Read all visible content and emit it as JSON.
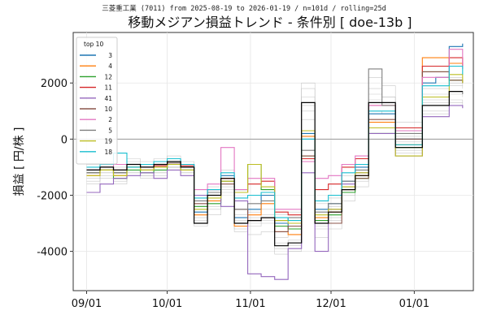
{
  "chart_data": {
    "type": "line",
    "subtitle": "三菱重工業 (7011) from 2025-08-19 to 2026-01-19 / n=101d / rolling=25d",
    "title": "移動メジアン損益トレンド - 条件別 [ doe-13b ]",
    "xlabel": "",
    "ylabel": "損益 [ 円/株 ]",
    "ylim": [
      -5400,
      3800
    ],
    "yticks": [
      -4000,
      -2000,
      0,
      2000
    ],
    "x_range": [
      "2025-08-27",
      "2026-01-23"
    ],
    "xticks": [
      {
        "date": "2025-09-01",
        "label": "09/01"
      },
      {
        "date": "2025-10-01",
        "label": "10/01"
      },
      {
        "date": "2025-11-01",
        "label": "11/01"
      },
      {
        "date": "2025-12-01",
        "label": "12/01"
      },
      {
        "date": "2026-01-01",
        "label": "01/01"
      }
    ],
    "grid": true,
    "legend_title": "top 10",
    "legend_position": "top-left",
    "zero_line": true,
    "dates": [
      "2025-09-01",
      "2025-09-06",
      "2025-09-11",
      "2025-09-16",
      "2025-09-21",
      "2025-09-26",
      "2025-10-01",
      "2025-10-06",
      "2025-10-11",
      "2025-10-16",
      "2025-10-21",
      "2025-10-26",
      "2025-10-31",
      "2025-11-05",
      "2025-11-10",
      "2025-11-15",
      "2025-11-20",
      "2025-11-25",
      "2025-11-30",
      "2025-12-05",
      "2025-12-10",
      "2025-12-15",
      "2025-12-20",
      "2025-12-25",
      "2025-12-30",
      "2026-01-04",
      "2026-01-09",
      "2026-01-14",
      "2026-01-19"
    ],
    "series": [
      {
        "name": "3",
        "color": "#1f77b4",
        "values": [
          -1100,
          -1000,
          -1200,
          -900,
          -1000,
          -900,
          -800,
          -900,
          -2600,
          -2000,
          -1300,
          -2800,
          -2500,
          -2000,
          -3000,
          -3200,
          200,
          -2500,
          -2300,
          -1500,
          -1000,
          900,
          900,
          0,
          0,
          2000,
          2200,
          3300,
          3400
        ]
      },
      {
        "name": "4",
        "color": "#ff7f0e",
        "values": [
          -1300,
          -1100,
          -1300,
          -1000,
          -1100,
          -1000,
          -800,
          -1000,
          -2700,
          -2200,
          -1400,
          -3100,
          -2700,
          -2300,
          -3300,
          -3400,
          100,
          -2800,
          -2600,
          -1800,
          -1300,
          600,
          600,
          -200,
          -200,
          2900,
          2900,
          2700,
          2600
        ]
      },
      {
        "name": "12",
        "color": "#2ca02c",
        "values": [
          -1200,
          -1100,
          -1400,
          -1100,
          -1200,
          -1100,
          -900,
          -1100,
          -2400,
          -2300,
          -1500,
          -1800,
          -900,
          -1800,
          -3100,
          -3200,
          -600,
          -2900,
          -2700,
          -1900,
          -1400,
          200,
          200,
          -300,
          -300,
          2400,
          2400,
          2100,
          2100
        ]
      },
      {
        "name": "11",
        "color": "#d62728",
        "values": [
          -1100,
          -1000,
          -1100,
          -900,
          -1000,
          -950,
          -850,
          -950,
          -2000,
          -1800,
          -1400,
          -1900,
          -1600,
          -1500,
          -2600,
          -2700,
          -700,
          -1800,
          -1600,
          -1000,
          -700,
          1200,
          1200,
          400,
          400,
          2600,
          2600,
          2900,
          2600
        ]
      },
      {
        "name": "41",
        "color": "#9467bd",
        "values": [
          -1900,
          -1600,
          -1400,
          -1300,
          -1200,
          -1400,
          -1100,
          -1300,
          -2000,
          -1800,
          -2400,
          -2200,
          -4800,
          -4900,
          -5000,
          -3900,
          -1200,
          -4000,
          -2500,
          -1600,
          -1200,
          200,
          200,
          -600,
          -600,
          800,
          800,
          1200,
          1100
        ]
      },
      {
        "name": "10",
        "color": "#8c564b",
        "values": [
          -1200,
          -1100,
          -1200,
          -1000,
          -1100,
          -1000,
          -900,
          -1100,
          -2300,
          -2000,
          -1600,
          -2500,
          -2900,
          -2800,
          -3300,
          -3100,
          -600,
          -3000,
          -3000,
          -1700,
          -1400,
          700,
          700,
          0,
          0,
          2400,
          2400,
          2100,
          2000
        ]
      },
      {
        "name": "2",
        "color": "#e377c2",
        "values": [
          -1100,
          -1000,
          -900,
          -900,
          -1000,
          -900,
          -900,
          -1000,
          -1800,
          -1600,
          -300,
          -1800,
          -1400,
          -1400,
          -2500,
          -2500,
          -800,
          -1400,
          -1300,
          -900,
          -600,
          1200,
          1200,
          300,
          300,
          2200,
          2200,
          3200,
          2500
        ]
      },
      {
        "name": "5",
        "color": "#7f7f7f",
        "values": [
          -1200,
          -1000,
          -1200,
          -1000,
          -1000,
          -900,
          -850,
          -1000,
          -2200,
          -1900,
          -1500,
          -2500,
          -2300,
          -2200,
          -2900,
          -2800,
          -400,
          -2600,
          -2300,
          -1500,
          -1100,
          2500,
          1200,
          200,
          200,
          1500,
          1500,
          1700,
          1600
        ]
      },
      {
        "name": "19",
        "color": "#bcbd22",
        "values": [
          -1300,
          -1100,
          -1300,
          -1000,
          -1100,
          -1000,
          -900,
          -1100,
          -2500,
          -2100,
          -1500,
          -1900,
          -900,
          -1700,
          -2900,
          -3000,
          300,
          -2700,
          -2500,
          -1700,
          -1200,
          400,
          400,
          -600,
          -600,
          1500,
          1500,
          2300,
          2000
        ]
      },
      {
        "name": "18",
        "color": "#17becf",
        "values": [
          -1000,
          -900,
          -500,
          -1000,
          -900,
          -800,
          -700,
          -900,
          -2100,
          -1800,
          -1200,
          -2100,
          -2000,
          -1900,
          -2800,
          -2900,
          0,
          -2200,
          -2000,
          -1200,
          -900,
          1000,
          1000,
          -200,
          -200,
          1900,
          1900,
          2600,
          2300
        ]
      }
    ],
    "median": {
      "name": "",
      "color": "#000000",
      "values": [
        -1100,
        -1000,
        -1100,
        -900,
        -1000,
        -900,
        -800,
        -1000,
        -3000,
        -2000,
        -1400,
        -3000,
        -2900,
        -2800,
        -3800,
        -3700,
        1300,
        -3000,
        -2600,
        -1800,
        -1300,
        1300,
        1300,
        -300,
        -300,
        1200,
        1200,
        1700,
        1700
      ]
    },
    "background_series": [
      [
        -1400,
        -1200,
        -1500,
        -1200,
        -1300,
        -1200,
        -1000,
        -1200,
        -2900,
        -2400,
        -1700,
        -3200,
        -3100,
        -3000,
        -3900,
        -3800,
        1500,
        -3200,
        -2900,
        -2000,
        -1500,
        1800,
        1500,
        -100,
        -100,
        1600,
        1600,
        1900,
        1800
      ],
      [
        -900,
        -800,
        -900,
        -700,
        -800,
        -700,
        -600,
        -800,
        -2000,
        -1700,
        -1100,
        -2200,
        -2000,
        -1900,
        -2700,
        -2600,
        1800,
        -2300,
        -2100,
        -1300,
        -900,
        1600,
        1500,
        300,
        300,
        1400,
        1400,
        2000,
        1900
      ],
      [
        -1600,
        -1400,
        -1600,
        -1300,
        -1400,
        -1300,
        -1100,
        -1300,
        -3100,
        -2700,
        -1900,
        -3300,
        -3400,
        -3300,
        -4100,
        -4000,
        1000,
        -3500,
        -3200,
        -2200,
        -1700,
        1000,
        900,
        -400,
        -400,
        1000,
        1000,
        1400,
        1300
      ],
      [
        -1000,
        -900,
        -1000,
        -800,
        -900,
        -800,
        -700,
        -900,
        -2500,
        -2100,
        -1300,
        -2700,
        -2600,
        -2500,
        -3300,
        -3200,
        2000,
        -2700,
        -2400,
        -1600,
        -1100,
        2200,
        1900,
        600,
        600,
        1800,
        1800,
        2200,
        2100
      ],
      [
        -1300,
        -1200,
        -1300,
        -1100,
        -1200,
        -1100,
        -1000,
        -1100,
        -2700,
        -2200,
        -1500,
        -2900,
        -2800,
        -2700,
        -3500,
        -3400,
        700,
        -2900,
        -2600,
        -1700,
        -1300,
        700,
        700,
        -500,
        -500,
        900,
        900,
        1300,
        1200
      ],
      [
        -1500,
        -1300,
        -1400,
        -1200,
        -1300,
        -1200,
        -1000,
        -1200,
        -2800,
        -2500,
        -1800,
        -3000,
        -3000,
        -2900,
        -3700,
        -3600,
        1200,
        -3100,
        -2800,
        -1900,
        -1400,
        1400,
        1300,
        100,
        100,
        1300,
        1300,
        1600,
        1500
      ]
    ]
  }
}
